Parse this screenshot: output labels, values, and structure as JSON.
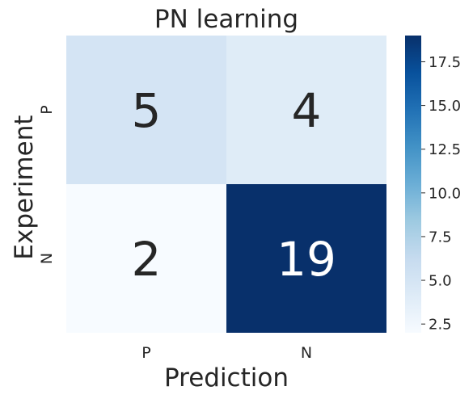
{
  "chart_data": {
    "type": "heatmap",
    "title": "PN learning",
    "xlabel": "Prediction",
    "ylabel": "Experiment",
    "x_categories": [
      "P",
      "N"
    ],
    "y_categories": [
      "P",
      "N"
    ],
    "values": [
      [
        5,
        4
      ],
      [
        2,
        19
      ]
    ],
    "colormap": "Blues",
    "colorbar": {
      "range": [
        2,
        19
      ],
      "ticks": [
        2.5,
        5.0,
        7.5,
        10.0,
        12.5,
        15.0,
        17.5
      ],
      "tick_labels": [
        "2.5",
        "5.0",
        "7.5",
        "10.0",
        "12.5",
        "15.0",
        "17.5"
      ]
    },
    "colors": {
      "text_dark": "#262626",
      "text_light": "#ffffff"
    }
  }
}
